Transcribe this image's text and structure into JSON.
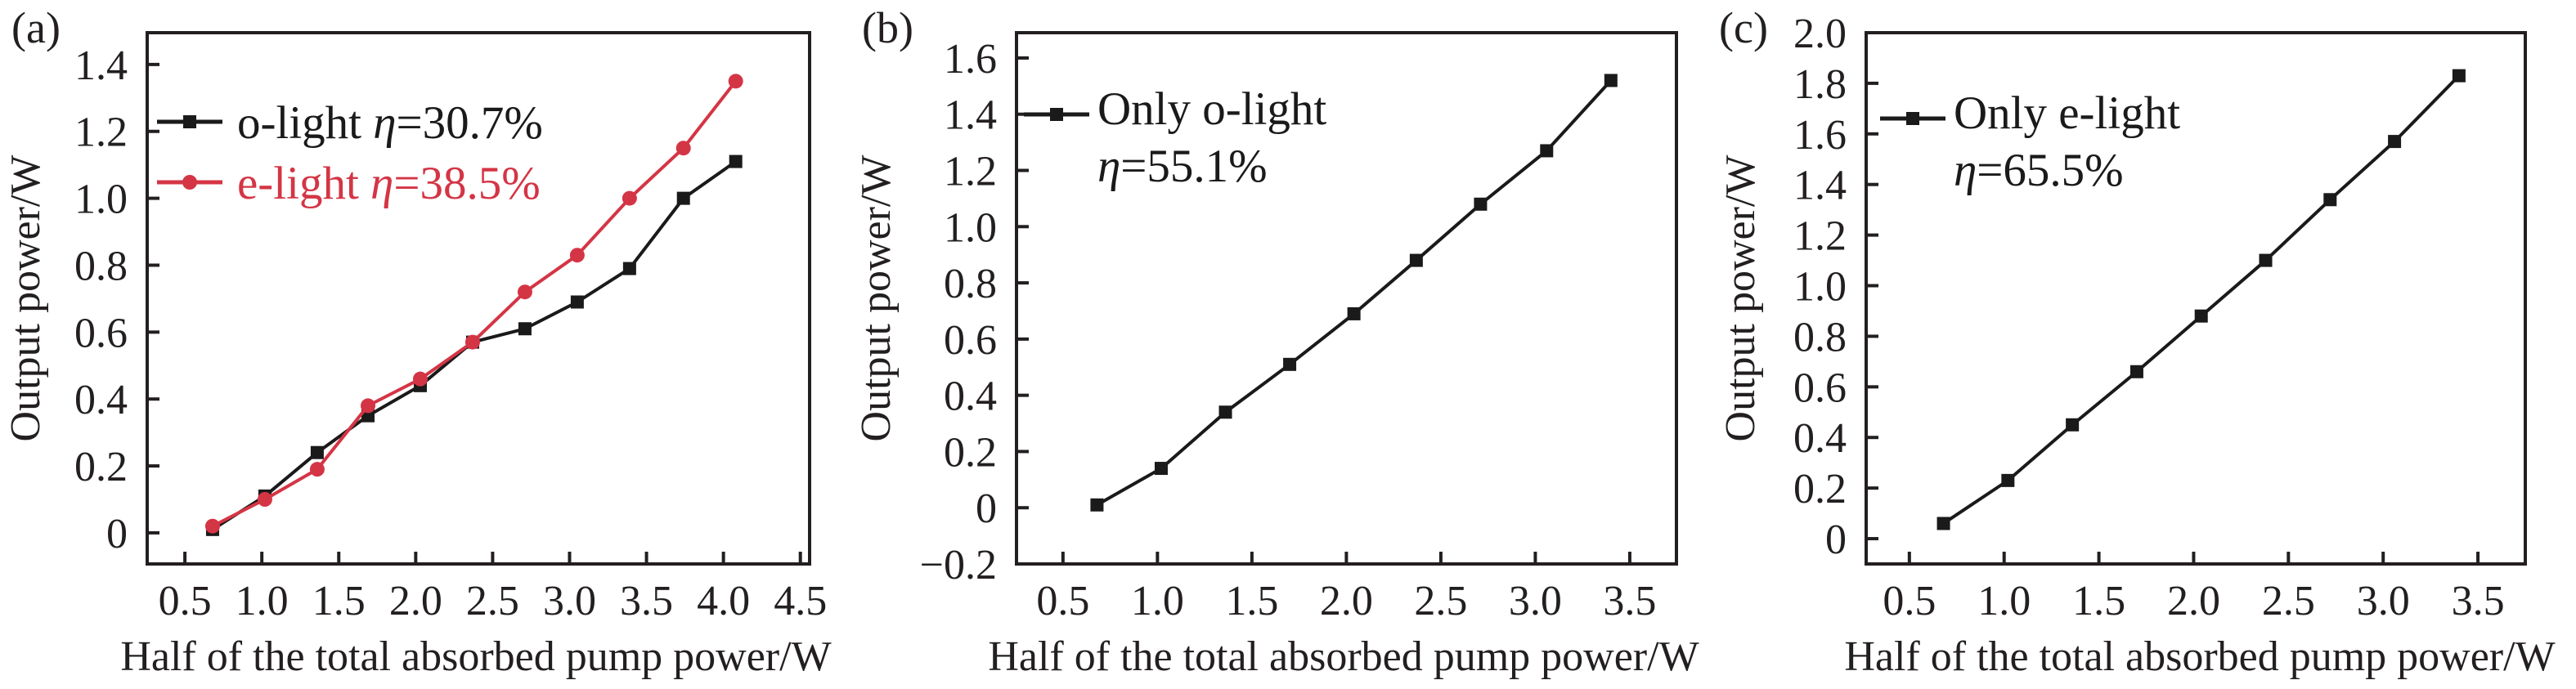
{
  "colors": {
    "o_light": "#1a1a1a",
    "e_light": "#d43545",
    "axis": "#231f20",
    "background": "#ffffff"
  },
  "chart_data": [
    {
      "type": "line",
      "panel_label": "(a)",
      "xlabel": "Half of the total absorbed pump power/W",
      "ylabel": "Output power/W",
      "xlim": [
        0.255,
        4.56
      ],
      "ylim": [
        -0.093,
        1.495
      ],
      "xticks": [
        "0.5",
        "1.0",
        "1.5",
        "2.0",
        "2.5",
        "3.0",
        "3.5",
        "4.0",
        "4.5"
      ],
      "yticks": [
        "0",
        "0.2",
        "0.4",
        "0.6",
        "0.8",
        "1.0",
        "1.2",
        "1.4"
      ],
      "grid": false,
      "legend_position": "top-left",
      "series": [
        {
          "name": "o-light",
          "efficiency_label": "η=30.7%",
          "marker": "square",
          "color_key": "o_light",
          "x": [
            0.68,
            1.02,
            1.36,
            1.69,
            2.03,
            2.37,
            2.71,
            3.05,
            3.39,
            3.74,
            4.08
          ],
          "y": [
            0.01,
            0.11,
            0.24,
            0.35,
            0.44,
            0.57,
            0.61,
            0.69,
            0.79,
            1.0,
            1.11
          ]
        },
        {
          "name": "e-light",
          "efficiency_label": "η=38.5%",
          "marker": "circle",
          "color_key": "e_light",
          "x": [
            0.68,
            1.02,
            1.36,
            1.69,
            2.03,
            2.37,
            2.71,
            3.05,
            3.39,
            3.74,
            4.08
          ],
          "y": [
            0.02,
            0.1,
            0.19,
            0.38,
            0.46,
            0.57,
            0.72,
            0.83,
            1.0,
            1.15,
            1.35
          ]
        }
      ]
    },
    {
      "type": "line",
      "panel_label": "(b)",
      "xlabel": "Half of the total absorbed pump power/W",
      "ylabel": "Output power/W",
      "xlim": [
        0.254,
        3.747
      ],
      "ylim": [
        -0.2,
        1.69
      ],
      "xticks": [
        "0.5",
        "1.0",
        "1.5",
        "2.0",
        "2.5",
        "3.0",
        "3.5"
      ],
      "yticks": [
        "−0.2",
        "0",
        "0.2",
        "0.4",
        "0.6",
        "0.8",
        "1.0",
        "1.2",
        "1.4",
        "1.6"
      ],
      "grid": false,
      "legend_position": "top-left",
      "series": [
        {
          "name": "Only o-light",
          "efficiency_label": "η=55.1%",
          "marker": "square",
          "color_key": "o_light",
          "x": [
            0.68,
            1.02,
            1.36,
            1.7,
            2.04,
            2.37,
            2.71,
            3.06,
            3.4
          ],
          "y": [
            0.01,
            0.14,
            0.34,
            0.51,
            0.69,
            0.88,
            1.08,
            1.27,
            1.52
          ]
        }
      ]
    },
    {
      "type": "line",
      "panel_label": "(c)",
      "xlabel": "Half of the total absorbed pump power/W",
      "ylabel": "Output power/W",
      "xlim": [
        0.272,
        3.75
      ],
      "ylim": [
        -0.1,
        2.0
      ],
      "xticks": [
        "0.5",
        "1.0",
        "1.5",
        "2.0",
        "2.5",
        "3.0",
        "3.5"
      ],
      "yticks": [
        "0",
        "0.2",
        "0.4",
        "0.6",
        "0.8",
        "1.0",
        "1.2",
        "1.4",
        "1.6",
        "1.8",
        "2.0"
      ],
      "grid": false,
      "legend_position": "top-left",
      "series": [
        {
          "name": "Only e-light",
          "efficiency_label": "η=65.5%",
          "marker": "square",
          "color_key": "o_light",
          "x": [
            0.68,
            1.02,
            1.36,
            1.7,
            2.04,
            2.38,
            2.72,
            3.06,
            3.4
          ],
          "y": [
            0.06,
            0.23,
            0.45,
            0.66,
            0.88,
            1.1,
            1.34,
            1.57,
            1.83
          ]
        }
      ]
    }
  ]
}
